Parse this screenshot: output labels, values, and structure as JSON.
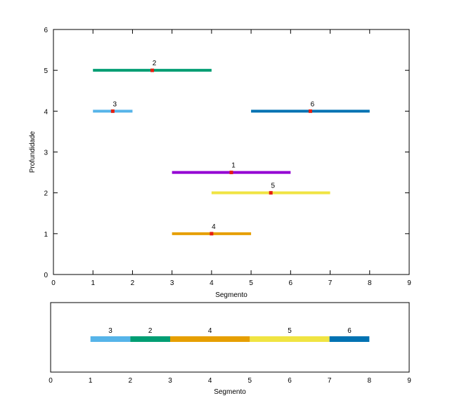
{
  "colors": {
    "1": "#9400d3",
    "2": "#009e73",
    "3": "#56b4e9",
    "4": "#e69f00",
    "5": "#f0e442",
    "6": "#0072b2",
    "midpoint": "#e51e10"
  },
  "chart_data": [
    {
      "type": "interval",
      "xlabel": "Segmento",
      "ylabel": "Profundidade",
      "xlim": [
        0,
        9
      ],
      "ylim": [
        0,
        6
      ],
      "xticks": [
        0,
        1,
        2,
        3,
        4,
        5,
        6,
        7,
        8,
        9
      ],
      "yticks": [
        0,
        1,
        2,
        3,
        4,
        5,
        6
      ],
      "grid": false,
      "intervals": [
        {
          "label": "1",
          "start": 3,
          "end": 6,
          "depth": 2.5,
          "mid": 4.5
        },
        {
          "label": "2",
          "start": 1,
          "end": 4,
          "depth": 5,
          "mid": 2.5
        },
        {
          "label": "3",
          "start": 1,
          "end": 2,
          "depth": 4,
          "mid": 1.5
        },
        {
          "label": "4",
          "start": 3,
          "end": 5,
          "depth": 1,
          "mid": 4
        },
        {
          "label": "5",
          "start": 4,
          "end": 7,
          "depth": 2,
          "mid": 5.5
        },
        {
          "label": "6",
          "start": 5,
          "end": 8,
          "depth": 4,
          "mid": 6.5
        }
      ]
    },
    {
      "type": "bar",
      "xlabel": "Segmento",
      "xlim": [
        0,
        9
      ],
      "xticks": [
        0,
        1,
        2,
        3,
        4,
        5,
        6,
        7,
        8,
        9
      ],
      "grid": false,
      "segments": [
        {
          "label": "3",
          "start": 1,
          "end": 2
        },
        {
          "label": "2",
          "start": 2,
          "end": 3
        },
        {
          "label": "4",
          "start": 3,
          "end": 5
        },
        {
          "label": "5",
          "start": 5,
          "end": 7
        },
        {
          "label": "6",
          "start": 7,
          "end": 8
        }
      ]
    }
  ]
}
